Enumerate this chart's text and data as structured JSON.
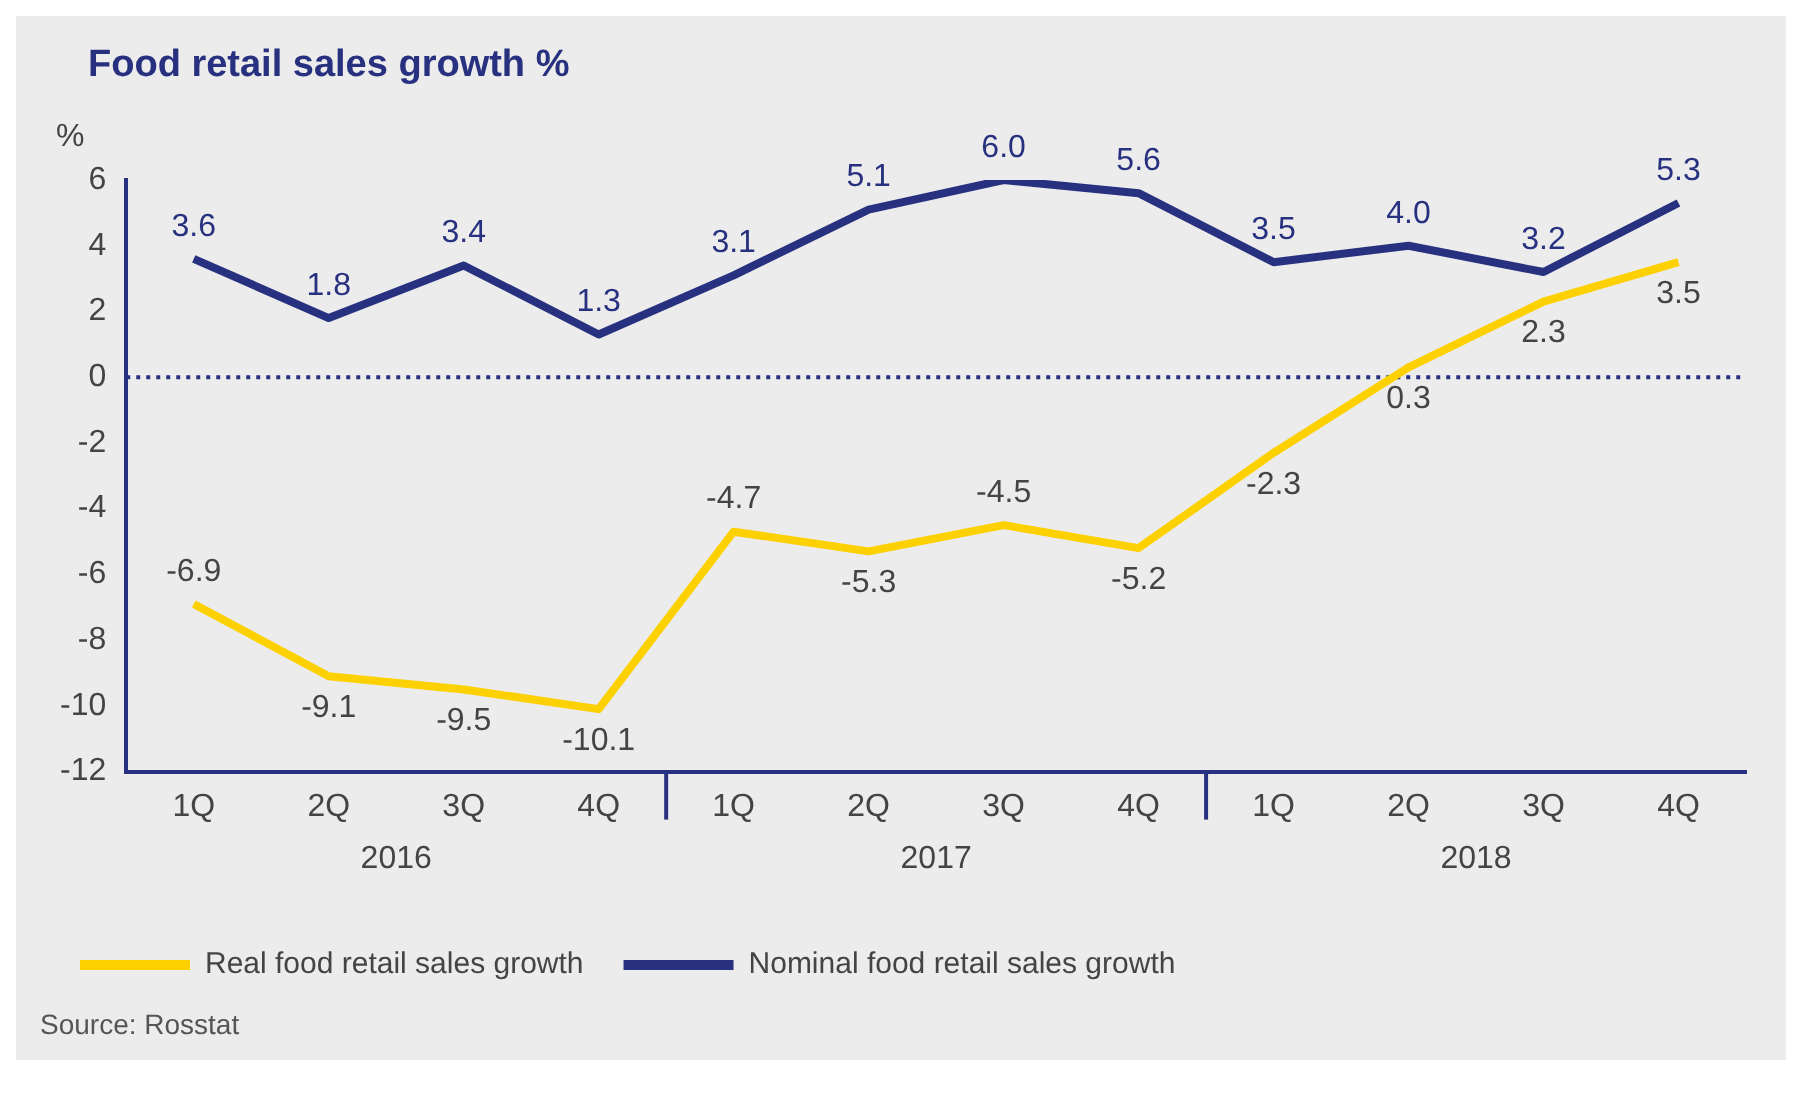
{
  "chart_data": {
    "type": "line",
    "title": "Food retail sales growth %",
    "ylabel": "%",
    "categories": [
      "1Q",
      "2Q",
      "3Q",
      "4Q",
      "1Q",
      "2Q",
      "3Q",
      "4Q",
      "1Q",
      "2Q",
      "3Q",
      "4Q"
    ],
    "series": [
      {
        "name": "Real food retail sales growth",
        "color": "#fdd000",
        "values": [
          -6.9,
          -9.1,
          -9.5,
          -10.1,
          -4.7,
          -5.3,
          -4.5,
          -5.2,
          -2.3,
          0.3,
          2.3,
          3.5
        ],
        "value_labels": [
          "-6.9",
          "-9.1",
          "-9.5",
          "-10.1",
          "-4.7",
          "-5.3",
          "-4.5",
          "-5.2",
          "-2.3",
          "0.3",
          "2.3",
          "3.5"
        ]
      },
      {
        "name": "Nominal food retail sales growth",
        "color": "#27317f",
        "values": [
          3.6,
          1.8,
          3.4,
          1.3,
          3.1,
          5.1,
          6.0,
          5.6,
          3.5,
          4.0,
          3.2,
          5.3
        ],
        "value_labels": [
          "3.6",
          "1.8",
          "3.4",
          "1.3",
          "3.1",
          "5.1",
          "6.0",
          "5.6",
          "3.5",
          "4.0",
          "3.2",
          "5.3"
        ]
      }
    ],
    "ylim": [
      -12,
      6
    ],
    "yticks": [
      -12,
      -10,
      -8,
      -6,
      -4,
      -2,
      0,
      2,
      4,
      6
    ],
    "ref_lines": [
      {
        "axis": "y",
        "value": 0,
        "color": "#27317f",
        "line_style": "dotted"
      }
    ],
    "grid": false,
    "legend": "bottom",
    "marker": "none",
    "line_style": "solid",
    "annotations": [
      "2016",
      "2017",
      "2018",
      "Source: Rosstat"
    ]
  }
}
